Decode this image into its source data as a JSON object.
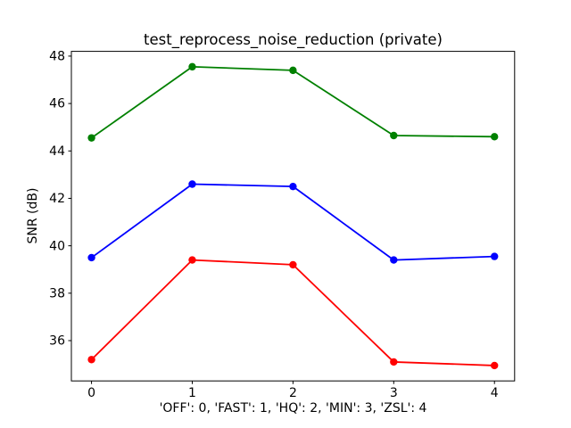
{
  "chart_data": {
    "type": "line",
    "title": "test_reprocess_noise_reduction (private)",
    "xlabel": "'OFF': 0, 'FAST': 1, 'HQ': 2, 'MIN': 3, 'ZSL': 4",
    "ylabel": "SNR (dB)",
    "x": [
      0,
      1,
      2,
      3,
      4
    ],
    "x_ticks": [
      0,
      1,
      2,
      3,
      4
    ],
    "x_tick_labels": [
      "0",
      "1",
      "2",
      "3",
      "4"
    ],
    "y_ticks": [
      36,
      38,
      40,
      42,
      44,
      46,
      48
    ],
    "y_tick_labels": [
      "36",
      "38",
      "40",
      "42",
      "44",
      "46",
      "48"
    ],
    "xlim": [
      -0.2,
      4.2
    ],
    "ylim": [
      34.3,
      48.2
    ],
    "grid": false,
    "legend": false,
    "marker": "circle",
    "background": "#ffffff",
    "axis_color": "#000000",
    "text_color": "#000000",
    "series": [
      {
        "name": "green",
        "color": "#008000",
        "values": [
          44.55,
          47.55,
          47.4,
          44.65,
          44.6
        ]
      },
      {
        "name": "blue",
        "color": "#0000ff",
        "values": [
          39.5,
          42.6,
          42.5,
          39.4,
          39.55
        ]
      },
      {
        "name": "red",
        "color": "#ff0000",
        "values": [
          35.2,
          39.4,
          39.2,
          35.1,
          34.95
        ]
      }
    ]
  }
}
